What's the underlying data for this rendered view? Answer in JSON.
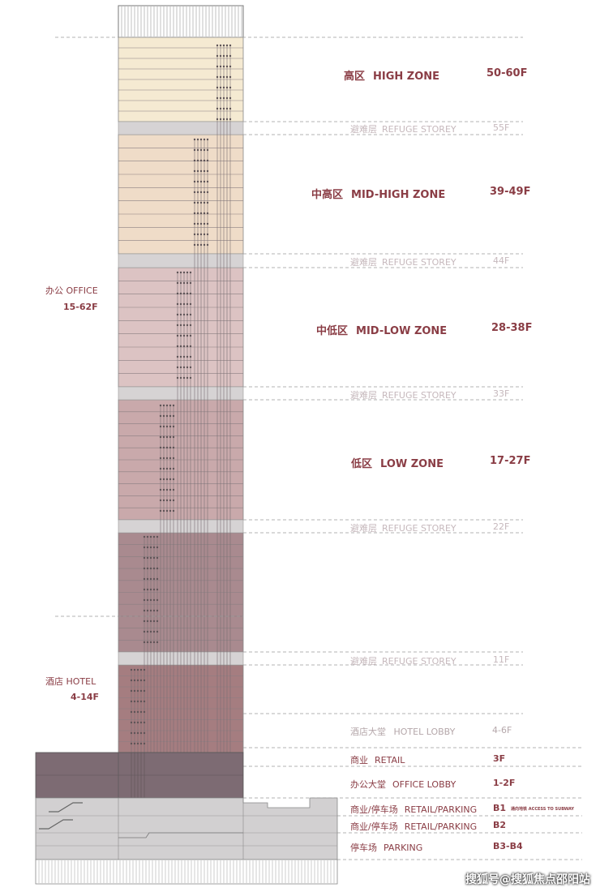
{
  "zones": [
    {
      "key": "high",
      "cn": "高区",
      "en": "HIGH ZONE",
      "floors": "50-60F"
    },
    {
      "key": "midhigh",
      "cn": "中高区",
      "en": "MID-HIGH ZONE",
      "floors": "39-49F"
    },
    {
      "key": "midlow",
      "cn": "中低区",
      "en": "MID-LOW ZONE",
      "floors": "28-38F"
    },
    {
      "key": "low",
      "cn": "低区",
      "en": "LOW ZONE",
      "floors": "17-27F"
    }
  ],
  "refuge": [
    {
      "cn": "避难层",
      "en": "REFUGE STOREY",
      "floor": "55F"
    },
    {
      "cn": "避难层",
      "en": "REFUGE STOREY",
      "floor": "44F"
    },
    {
      "cn": "避难层",
      "en": "REFUGE STOREY",
      "floor": "33F"
    },
    {
      "cn": "避难层",
      "en": "REFUGE STOREY",
      "floor": "22F"
    },
    {
      "cn": "避难层",
      "en": "REFUGE STOREY",
      "floor": "11F"
    }
  ],
  "office": {
    "label": "办公 OFFICE",
    "floors": "15-62F"
  },
  "hotel": {
    "label": "酒店 HOTEL",
    "floors": "4-14F"
  },
  "hotel_lobby": {
    "cn": "酒店大堂",
    "en": "HOTEL LOBBY",
    "floors": "4-6F"
  },
  "base": [
    {
      "cn": "商业",
      "en": "RETAIL",
      "floor": "3F",
      "note": ""
    },
    {
      "cn": "办公大堂",
      "en": "OFFICE LOBBY",
      "floor": "1-2F",
      "note": ""
    },
    {
      "cn": "商业/停车场",
      "en": "RETAIL/PARKING",
      "floor": "B1",
      "note": "通向地铁 ACCESS TO SUBWAY"
    },
    {
      "cn": "商业/停车场",
      "en": "RETAIL/PARKING",
      "floor": "B2",
      "note": ""
    },
    {
      "cn": "停车场",
      "en": "PARKING",
      "floor": "B3-B4",
      "note": ""
    }
  ],
  "watermark": "搜狐号@搜狐焦点邵阳站",
  "colors": {
    "accent": "#8a3d45",
    "high": "#f5ead2",
    "midhigh": "#efdcc8",
    "midlow": "#dcc3c3",
    "low": "#c9a9ab",
    "hotel_upper": "#a98a8f",
    "hotel": "#a57d80",
    "refuge": "#d6d3d4",
    "podium": "#7d6b73",
    "basement": "#d2d0d1"
  }
}
